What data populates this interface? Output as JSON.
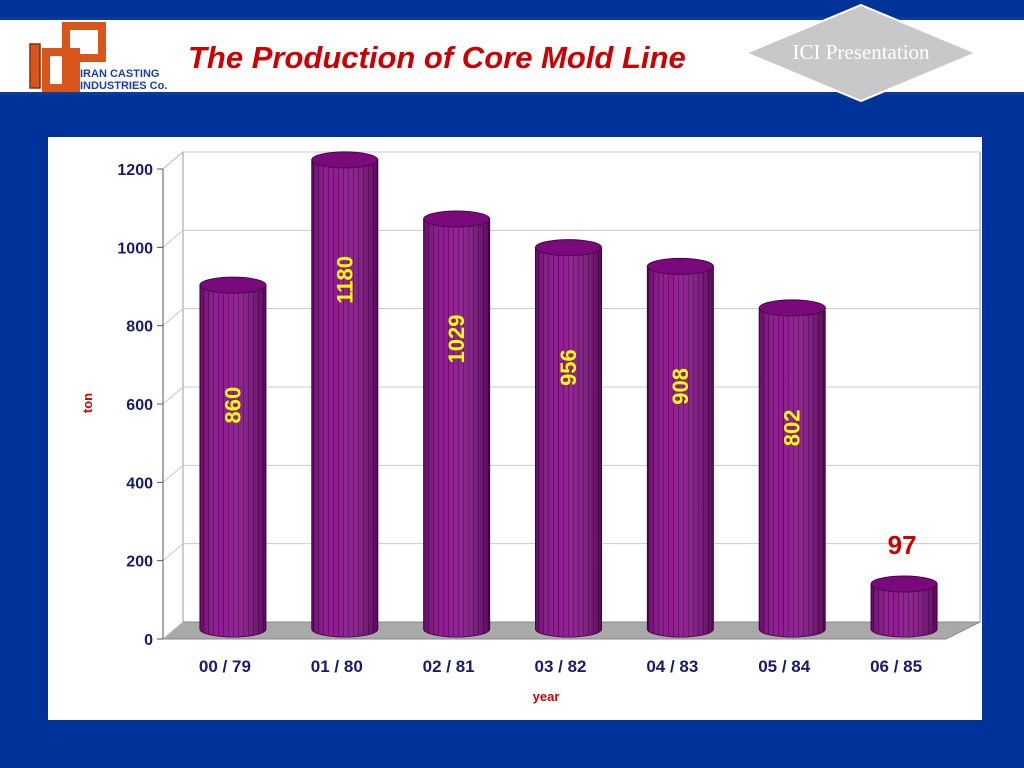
{
  "header": {
    "company_line1": "IRAN CASTING",
    "company_line2": "INDUSTRIES Co.",
    "title": "The Production of Core Mold Line",
    "badge": "ICI Presentation"
  },
  "colors": {
    "background": "#003399",
    "title": "#cc0000",
    "bar": "#8a0f8c",
    "bar_label": "#ffff00",
    "outside_label": "#cc0000"
  },
  "chart_data": {
    "type": "bar",
    "style": "3d-cylinder",
    "categories": [
      "00 / 79",
      "01 / 80",
      "02 / 81",
      "03 / 82",
      "04 / 83",
      "05 / 84",
      "06 / 85"
    ],
    "values": [
      860,
      1180,
      1029,
      956,
      908,
      802,
      97
    ],
    "data_labels": [
      "860",
      "1180",
      "1029",
      "956",
      "908",
      "802",
      "97"
    ],
    "xlabel": "year",
    "ylabel": "ton",
    "ylim": [
      0,
      1200
    ],
    "yticks": [
      0,
      200,
      400,
      600,
      800,
      1000,
      1200
    ],
    "ytick_labels": [
      "0",
      "200",
      "400",
      "600",
      "800",
      "1000",
      "1200"
    ],
    "grid": true,
    "legend": "none"
  }
}
